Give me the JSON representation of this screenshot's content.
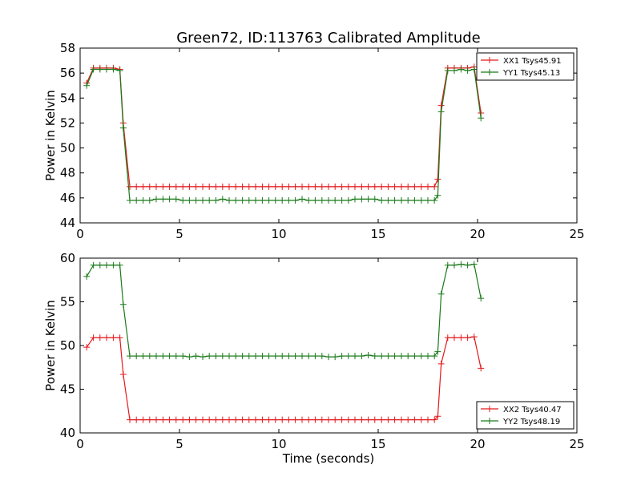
{
  "figure": {
    "title": "Green72, ID:113763 Calibrated Amplitude"
  },
  "colors": {
    "xx": "#e31a1c",
    "yy": "#1a7a1a",
    "axis": "#000000"
  },
  "chart_data": [
    {
      "type": "line",
      "panel": "top",
      "title": "Green72, ID:113763 Calibrated Amplitude",
      "xlabel": "",
      "ylabel": "Power in Kelvin",
      "xlim": [
        0,
        25
      ],
      "ylim": [
        44,
        58
      ],
      "xticks": [
        0,
        5,
        10,
        15,
        20,
        25
      ],
      "yticks": [
        44,
        46,
        48,
        50,
        52,
        54,
        56,
        58
      ],
      "grid": false,
      "legend_position": "top-right",
      "marker": "+",
      "series": [
        {
          "name": "XX1 Tsys45.91",
          "color": "#e31a1c",
          "x": [
            0.33,
            0.67,
            1.0,
            1.33,
            1.67,
            2.0,
            2.17,
            2.5,
            2.83,
            3.17,
            3.5,
            3.83,
            4.17,
            4.5,
            4.83,
            5.17,
            5.5,
            5.83,
            6.17,
            6.5,
            6.83,
            7.17,
            7.5,
            7.83,
            8.17,
            8.5,
            8.83,
            9.17,
            9.5,
            9.83,
            10.17,
            10.5,
            10.83,
            11.17,
            11.5,
            11.83,
            12.17,
            12.5,
            12.83,
            13.17,
            13.5,
            13.83,
            14.17,
            14.5,
            14.83,
            15.17,
            15.5,
            15.83,
            16.17,
            16.5,
            16.83,
            17.17,
            17.5,
            17.83,
            18.0,
            18.17,
            18.5,
            18.83,
            19.17,
            19.5,
            19.83,
            20.17
          ],
          "y": [
            55.2,
            56.4,
            56.4,
            56.4,
            56.4,
            56.3,
            52.0,
            46.9,
            46.9,
            46.9,
            46.9,
            46.9,
            46.9,
            46.9,
            46.9,
            46.9,
            46.9,
            46.9,
            46.9,
            46.9,
            46.9,
            46.9,
            46.9,
            46.9,
            46.9,
            46.9,
            46.9,
            46.9,
            46.9,
            46.9,
            46.9,
            46.9,
            46.9,
            46.9,
            46.9,
            46.9,
            46.9,
            46.9,
            46.9,
            46.9,
            46.9,
            46.9,
            46.9,
            46.9,
            46.9,
            46.9,
            46.9,
            46.9,
            46.9,
            46.9,
            46.9,
            46.9,
            46.9,
            46.9,
            47.5,
            53.4,
            56.4,
            56.4,
            56.4,
            56.4,
            56.5,
            52.8
          ]
        },
        {
          "name": "YY1 Tsys45.13",
          "color": "#1a7a1a",
          "x": [
            0.33,
            0.67,
            1.0,
            1.33,
            1.67,
            2.0,
            2.17,
            2.5,
            2.83,
            3.17,
            3.5,
            3.83,
            4.17,
            4.5,
            4.83,
            5.17,
            5.5,
            5.83,
            6.17,
            6.5,
            6.83,
            7.17,
            7.5,
            7.83,
            8.17,
            8.5,
            8.83,
            9.17,
            9.5,
            9.83,
            10.17,
            10.5,
            10.83,
            11.17,
            11.5,
            11.83,
            12.17,
            12.5,
            12.83,
            13.17,
            13.5,
            13.83,
            14.17,
            14.5,
            14.83,
            15.17,
            15.5,
            15.83,
            16.17,
            16.5,
            16.83,
            17.17,
            17.5,
            17.83,
            18.0,
            18.17,
            18.5,
            18.83,
            19.17,
            19.5,
            19.83,
            20.17
          ],
          "y": [
            55.0,
            56.3,
            56.3,
            56.3,
            56.3,
            56.2,
            51.6,
            45.8,
            45.8,
            45.8,
            45.8,
            45.9,
            45.9,
            45.9,
            45.9,
            45.8,
            45.8,
            45.8,
            45.8,
            45.8,
            45.8,
            45.9,
            45.8,
            45.8,
            45.8,
            45.8,
            45.8,
            45.8,
            45.8,
            45.8,
            45.8,
            45.8,
            45.8,
            45.9,
            45.8,
            45.8,
            45.8,
            45.8,
            45.8,
            45.8,
            45.8,
            45.9,
            45.9,
            45.9,
            45.9,
            45.8,
            45.8,
            45.8,
            45.8,
            45.8,
            45.8,
            45.8,
            45.8,
            45.8,
            46.2,
            52.9,
            56.2,
            56.2,
            56.3,
            56.2,
            56.3,
            52.4
          ]
        }
      ]
    },
    {
      "type": "line",
      "panel": "bottom",
      "title": "",
      "xlabel": "Time (seconds)",
      "ylabel": "Power in Kelvin",
      "xlim": [
        0,
        25
      ],
      "ylim": [
        40,
        60
      ],
      "xticks": [
        0,
        5,
        10,
        15,
        20,
        25
      ],
      "yticks": [
        40,
        45,
        50,
        55,
        60
      ],
      "grid": false,
      "legend_position": "bottom-right",
      "marker": "+",
      "series": [
        {
          "name": "XX2 Tsys40.47",
          "color": "#e31a1c",
          "x": [
            0.33,
            0.67,
            1.0,
            1.33,
            1.67,
            2.0,
            2.17,
            2.5,
            2.83,
            3.17,
            3.5,
            3.83,
            4.17,
            4.5,
            4.83,
            5.17,
            5.5,
            5.83,
            6.17,
            6.5,
            6.83,
            7.17,
            7.5,
            7.83,
            8.17,
            8.5,
            8.83,
            9.17,
            9.5,
            9.83,
            10.17,
            10.5,
            10.83,
            11.17,
            11.5,
            11.83,
            12.17,
            12.5,
            12.83,
            13.17,
            13.5,
            13.83,
            14.17,
            14.5,
            14.83,
            15.17,
            15.5,
            15.83,
            16.17,
            16.5,
            16.83,
            17.17,
            17.5,
            17.83,
            18.0,
            18.17,
            18.5,
            18.83,
            19.17,
            19.5,
            19.83,
            20.17
          ],
          "y": [
            49.8,
            50.9,
            50.9,
            50.9,
            50.9,
            50.9,
            46.7,
            41.5,
            41.5,
            41.5,
            41.5,
            41.5,
            41.5,
            41.5,
            41.5,
            41.5,
            41.5,
            41.5,
            41.5,
            41.5,
            41.5,
            41.5,
            41.5,
            41.5,
            41.5,
            41.5,
            41.5,
            41.5,
            41.5,
            41.5,
            41.5,
            41.5,
            41.5,
            41.5,
            41.5,
            41.5,
            41.5,
            41.5,
            41.5,
            41.5,
            41.5,
            41.5,
            41.5,
            41.5,
            41.5,
            41.5,
            41.5,
            41.5,
            41.5,
            41.5,
            41.5,
            41.5,
            41.5,
            41.5,
            41.9,
            47.9,
            50.9,
            50.9,
            50.9,
            50.9,
            51.0,
            47.4
          ]
        },
        {
          "name": "YY2 Tsys48.19",
          "color": "#1a7a1a",
          "x": [
            0.33,
            0.67,
            1.0,
            1.33,
            1.67,
            2.0,
            2.17,
            2.5,
            2.83,
            3.17,
            3.5,
            3.83,
            4.17,
            4.5,
            4.83,
            5.17,
            5.5,
            5.83,
            6.17,
            6.5,
            6.83,
            7.17,
            7.5,
            7.83,
            8.17,
            8.5,
            8.83,
            9.17,
            9.5,
            9.83,
            10.17,
            10.5,
            10.83,
            11.17,
            11.5,
            11.83,
            12.17,
            12.5,
            12.83,
            13.17,
            13.5,
            13.83,
            14.17,
            14.5,
            14.83,
            15.17,
            15.5,
            15.83,
            16.17,
            16.5,
            16.83,
            17.17,
            17.5,
            17.83,
            18.0,
            18.17,
            18.5,
            18.83,
            19.17,
            19.5,
            19.83,
            20.17
          ],
          "y": [
            57.9,
            59.2,
            59.2,
            59.2,
            59.2,
            59.2,
            54.7,
            48.8,
            48.8,
            48.8,
            48.8,
            48.8,
            48.8,
            48.8,
            48.8,
            48.8,
            48.7,
            48.8,
            48.7,
            48.8,
            48.8,
            48.8,
            48.8,
            48.8,
            48.8,
            48.8,
            48.8,
            48.8,
            48.8,
            48.8,
            48.8,
            48.8,
            48.8,
            48.8,
            48.8,
            48.8,
            48.8,
            48.7,
            48.7,
            48.8,
            48.8,
            48.8,
            48.8,
            48.9,
            48.8,
            48.8,
            48.8,
            48.8,
            48.8,
            48.8,
            48.8,
            48.8,
            48.8,
            48.8,
            49.3,
            55.9,
            59.2,
            59.2,
            59.3,
            59.2,
            59.3,
            55.4
          ]
        }
      ]
    }
  ]
}
